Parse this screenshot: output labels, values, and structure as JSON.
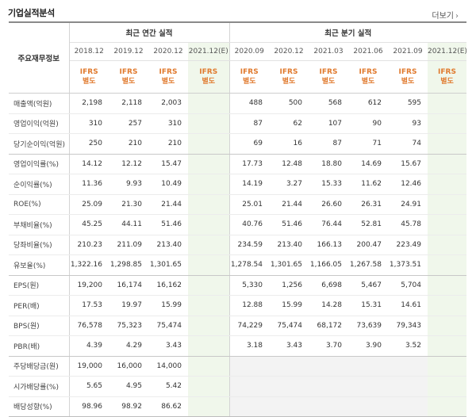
{
  "header": {
    "title": "기업실적분석",
    "more_label": "더보기",
    "more_icon": "chevron-right-icon"
  },
  "table": {
    "label_head": "주요재무정보",
    "group_annual": "최근 연간 실적",
    "group_quarterly": "최근 분기 실적",
    "periods": [
      "2018.12",
      "2019.12",
      "2020.12",
      "2021.12(E)",
      "2020.09",
      "2020.12",
      "2021.03",
      "2021.06",
      "2021.09",
      "2021.12(E)"
    ],
    "ifrs_top": "IFRS",
    "ifrs_bottom": "별도",
    "rows": [
      {
        "label": "매출액(억원)",
        "values": [
          "2,198",
          "2,118",
          "2,003",
          "",
          "488",
          "500",
          "568",
          "612",
          "595",
          ""
        ]
      },
      {
        "label": "영업이익(억원)",
        "values": [
          "310",
          "257",
          "310",
          "",
          "87",
          "62",
          "107",
          "90",
          "93",
          ""
        ]
      },
      {
        "label": "당기순이익(억원)",
        "values": [
          "250",
          "210",
          "210",
          "",
          "69",
          "16",
          "87",
          "71",
          "74",
          ""
        ]
      },
      {
        "label": "영업이익률(%)",
        "values": [
          "14.12",
          "12.12",
          "15.47",
          "",
          "17.73",
          "12.48",
          "18.80",
          "14.69",
          "15.67",
          ""
        ]
      },
      {
        "label": "순이익률(%)",
        "values": [
          "11.36",
          "9.93",
          "10.49",
          "",
          "14.19",
          "3.27",
          "15.33",
          "11.62",
          "12.46",
          ""
        ]
      },
      {
        "label": "ROE(%)",
        "values": [
          "25.09",
          "21.30",
          "21.44",
          "",
          "25.01",
          "21.44",
          "26.60",
          "26.31",
          "24.91",
          ""
        ]
      },
      {
        "label": "부채비율(%)",
        "values": [
          "45.25",
          "44.11",
          "51.46",
          "",
          "40.76",
          "51.46",
          "76.44",
          "52.81",
          "45.78",
          ""
        ]
      },
      {
        "label": "당좌비율(%)",
        "values": [
          "210.23",
          "211.09",
          "213.40",
          "",
          "234.59",
          "213.40",
          "166.13",
          "200.47",
          "223.49",
          ""
        ]
      },
      {
        "label": "유보율(%)",
        "values": [
          "1,322.16",
          "1,298.85",
          "1,301.65",
          "",
          "1,278.54",
          "1,301.65",
          "1,166.05",
          "1,267.58",
          "1,373.51",
          ""
        ]
      },
      {
        "label": "EPS(원)",
        "values": [
          "19,200",
          "16,174",
          "16,162",
          "",
          "5,330",
          "1,256",
          "6,698",
          "5,467",
          "5,704",
          ""
        ]
      },
      {
        "label": "PER(배)",
        "values": [
          "17.53",
          "19.97",
          "15.99",
          "",
          "12.88",
          "15.99",
          "14.28",
          "15.31",
          "14.61",
          ""
        ]
      },
      {
        "label": "BPS(원)",
        "values": [
          "76,578",
          "75,323",
          "75,474",
          "",
          "74,229",
          "75,474",
          "68,172",
          "73,639",
          "79,343",
          ""
        ]
      },
      {
        "label": "PBR(배)",
        "values": [
          "4.39",
          "4.29",
          "3.43",
          "",
          "3.18",
          "3.43",
          "3.70",
          "3.90",
          "3.52",
          ""
        ]
      },
      {
        "label": "주당배당금(원)",
        "values": [
          "19,000",
          "16,000",
          "14,000",
          "",
          "",
          "",
          "",
          "",
          "",
          ""
        ]
      },
      {
        "label": "시가배당률(%)",
        "values": [
          "5.65",
          "4.95",
          "5.42",
          "",
          "",
          "",
          "",
          "",
          "",
          ""
        ]
      },
      {
        "label": "배당성향(%)",
        "values": [
          "98.96",
          "98.92",
          "86.62",
          "",
          "",
          "",
          "",
          "",
          "",
          ""
        ]
      }
    ]
  }
}
